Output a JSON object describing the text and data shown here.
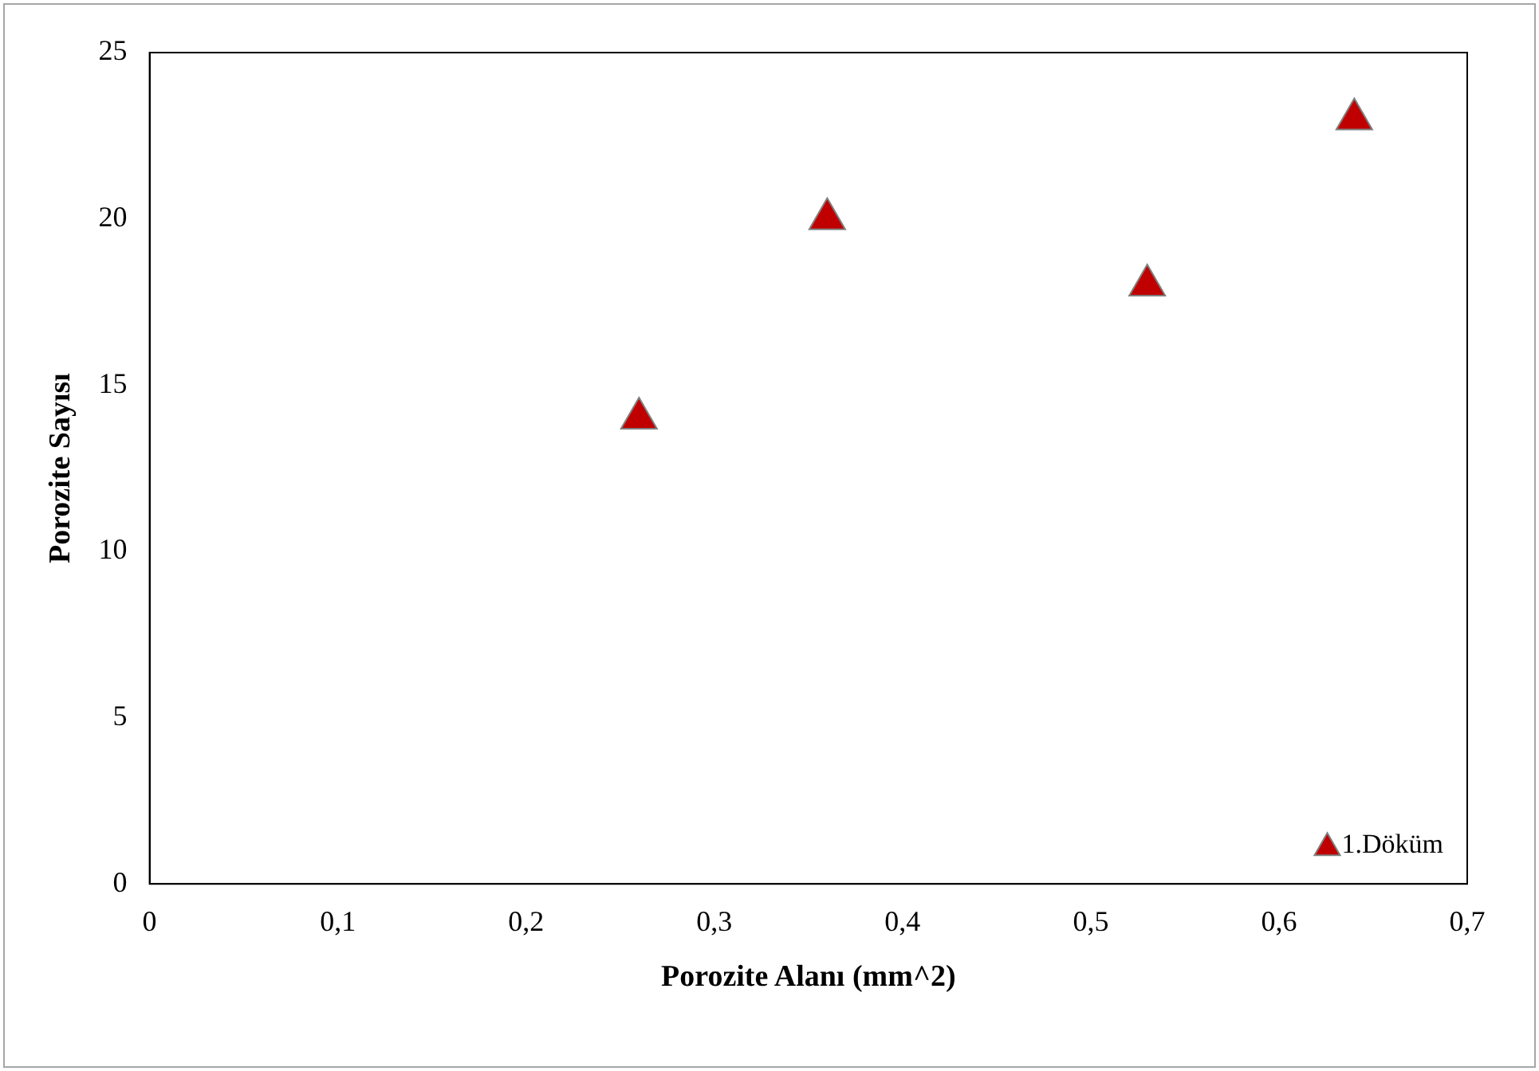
{
  "chart_data": {
    "type": "scatter",
    "xlabel": "Porozite Alanı (mm^2)",
    "ylabel": "Porozite Sayısı",
    "x": [
      0.26,
      0.36,
      0.53,
      0.64
    ],
    "series": [
      {
        "name": "1.Döküm",
        "color": "#c00000",
        "values": [
          14,
          20,
          18,
          23
        ]
      }
    ],
    "xlim": [
      0,
      0.7
    ],
    "xticks": [
      0,
      {
        "value": 0.1,
        "label": "0,1"
      },
      {
        "value": 0.2,
        "label": "0,2"
      },
      {
        "value": 0.3,
        "label": "0,3"
      },
      {
        "value": 0.4,
        "label": "0,4"
      },
      {
        "value": 0.5,
        "label": "0,5"
      },
      {
        "value": 0.6,
        "label": "0,6"
      },
      {
        "value": 0.7,
        "label": "0,7"
      }
    ],
    "ylim": [
      0,
      25
    ],
    "yticks": [
      0,
      5,
      10,
      15,
      20,
      25
    ],
    "grid": false,
    "legend": "bottom right",
    "marker": "triangle"
  }
}
